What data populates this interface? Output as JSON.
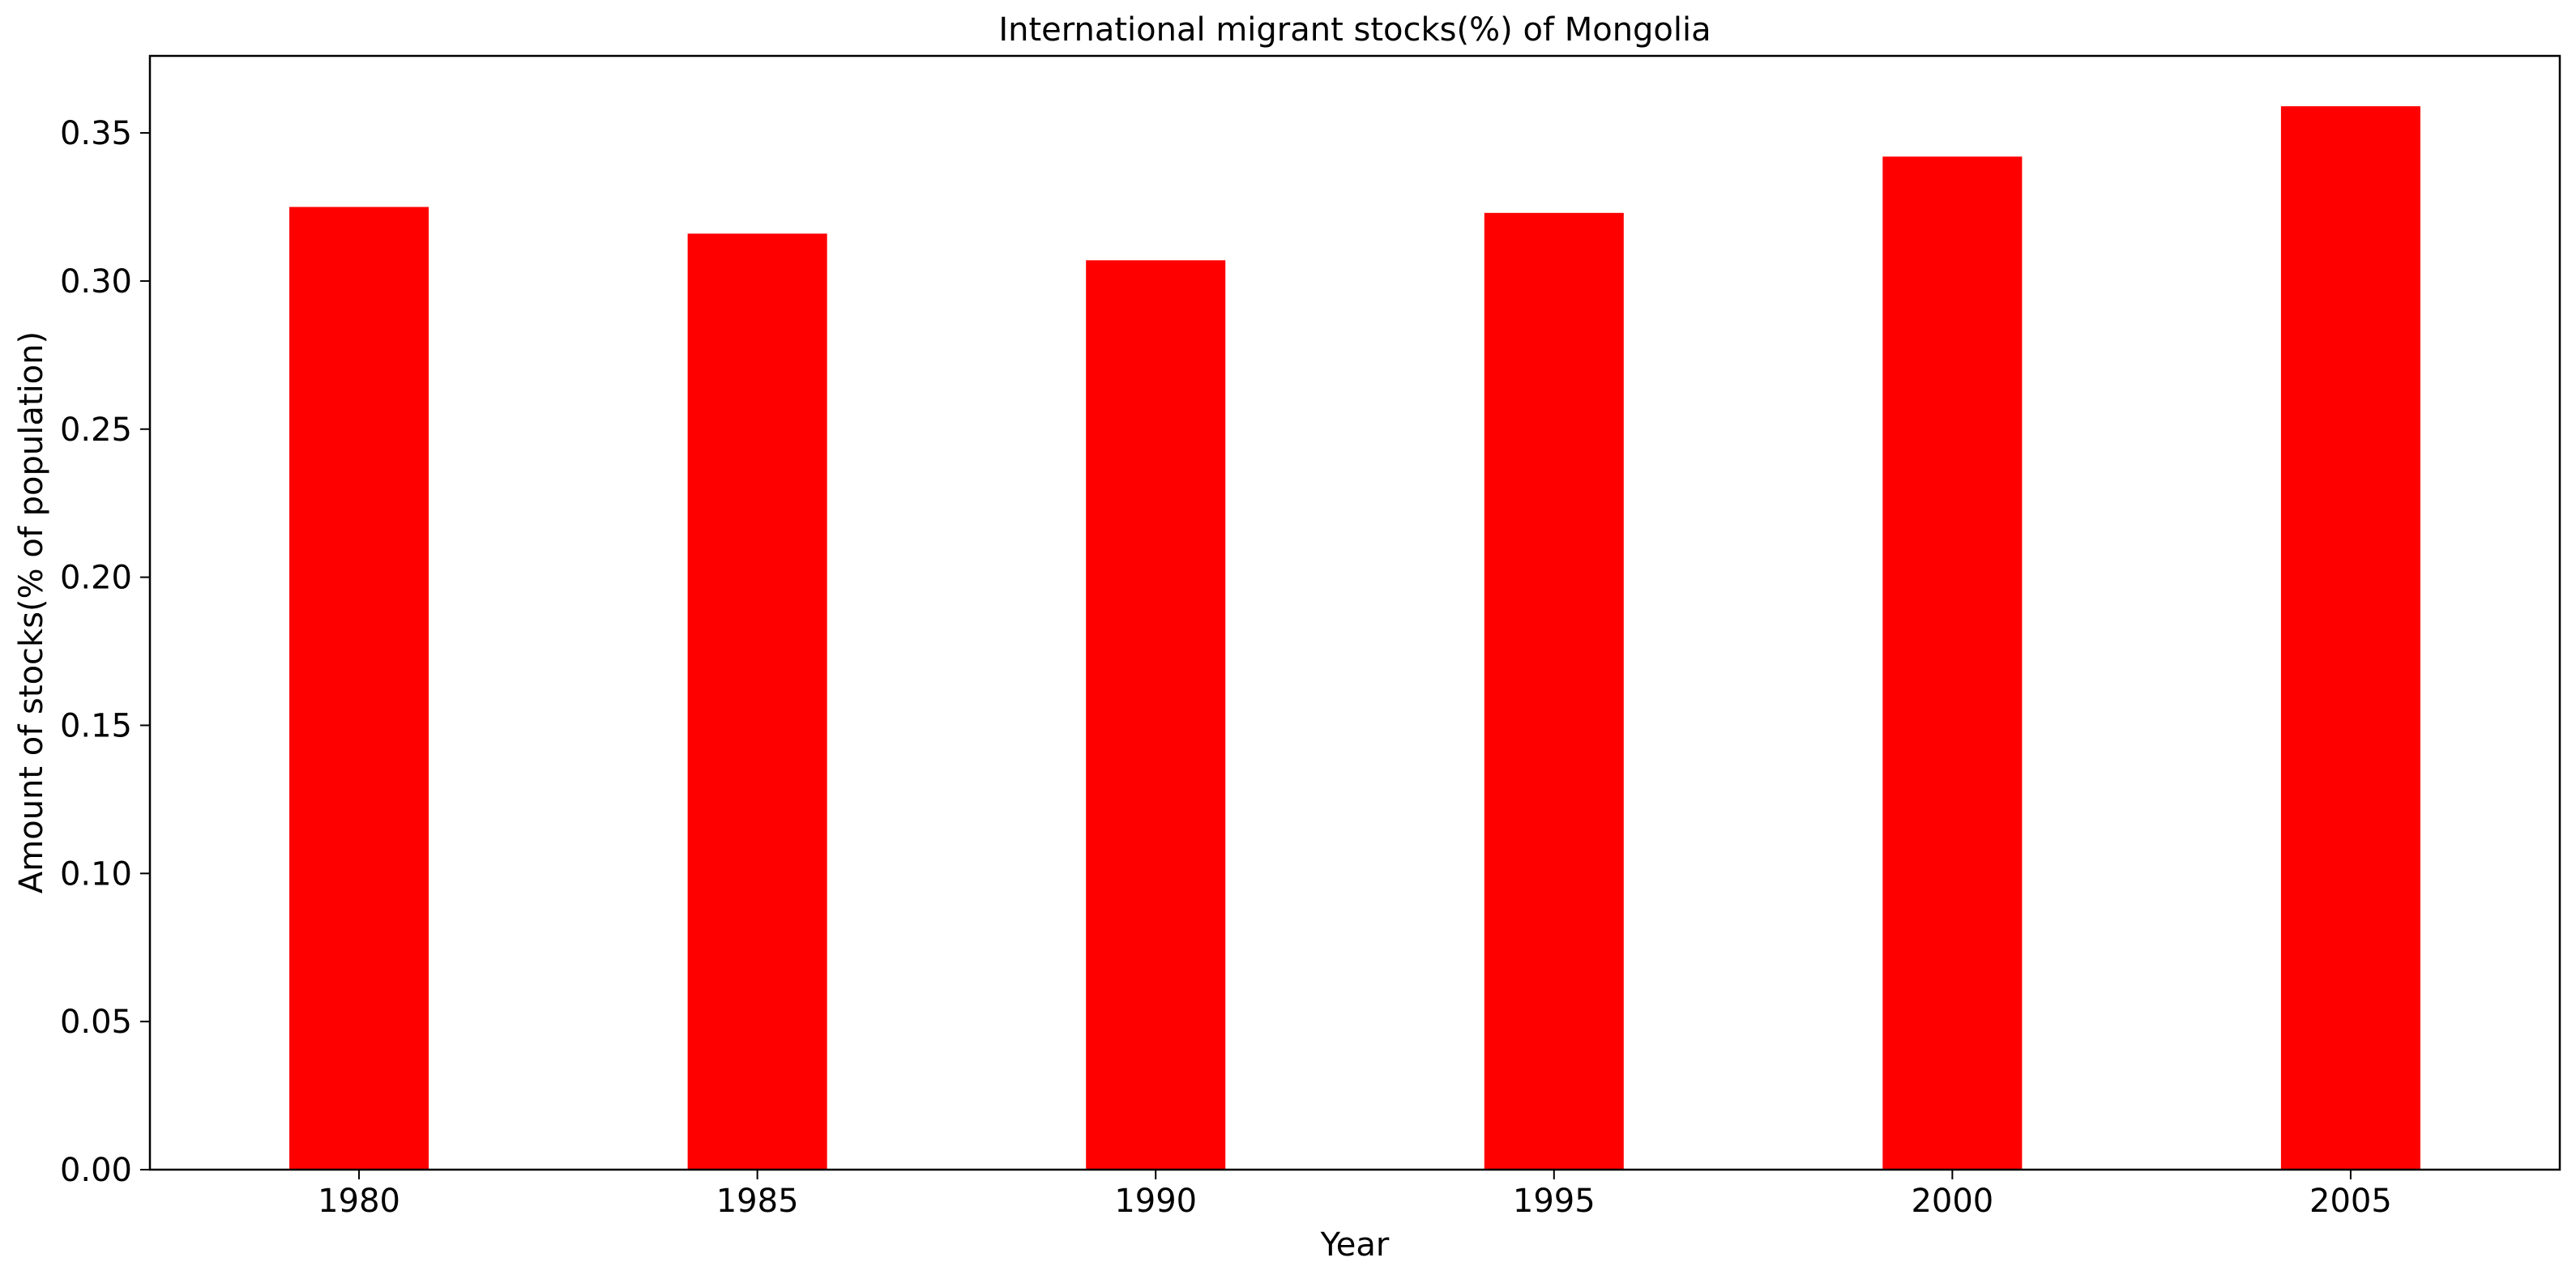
{
  "chart_data": {
    "type": "bar",
    "title": "International migrant stocks(%) of Mongolia",
    "xlabel": "Year",
    "ylabel": "Amount of stocks(% of population)",
    "categories": [
      "1980",
      "1985",
      "1990",
      "1995",
      "2000",
      "2005"
    ],
    "values": [
      0.325,
      0.316,
      0.307,
      0.323,
      0.342,
      0.359
    ],
    "ylim": [
      0,
      0.376
    ],
    "yticks": [
      "0.00",
      "0.05",
      "0.10",
      "0.15",
      "0.20",
      "0.25",
      "0.30",
      "0.35"
    ],
    "grid": false,
    "bar_color": "#ff0000"
  }
}
